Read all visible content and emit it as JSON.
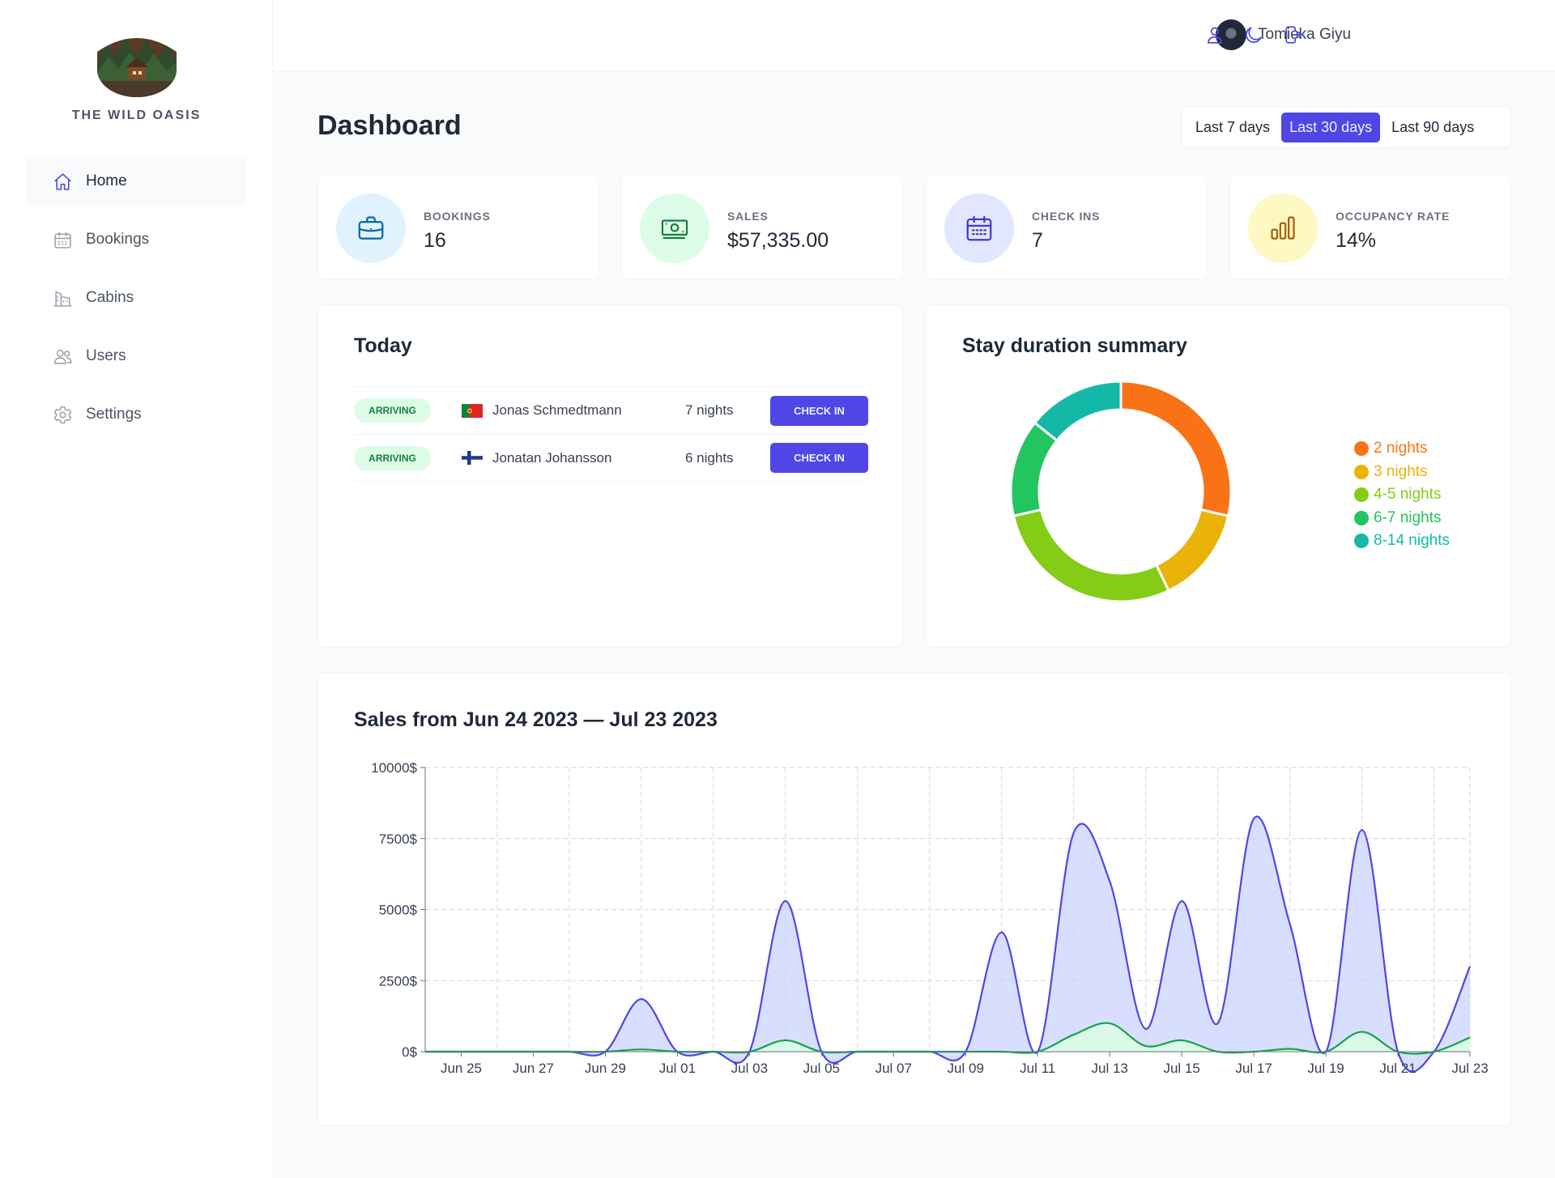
{
  "brand": {
    "name": "THE WILD OASIS"
  },
  "sidebar": {
    "items": [
      {
        "label": "Home",
        "icon": "home-icon"
      },
      {
        "label": "Bookings",
        "icon": "calendar-icon"
      },
      {
        "label": "Cabins",
        "icon": "cabins-icon"
      },
      {
        "label": "Users",
        "icon": "users-icon"
      },
      {
        "label": "Settings",
        "icon": "gear-icon"
      }
    ],
    "active": "Home"
  },
  "header": {
    "user_name": "Tomioka Giyu",
    "icons": [
      "user-icon",
      "moon-icon",
      "logout-icon"
    ]
  },
  "page": {
    "title": "Dashboard",
    "filters": [
      "Last 7 days",
      "Last 30 days",
      "Last 90 days"
    ],
    "active_filter": "Last 30 days"
  },
  "stats": [
    {
      "label": "BOOKINGS",
      "value": "16",
      "icon": "briefcase-icon",
      "bg": "#e0f2fe",
      "color": "#0369a1"
    },
    {
      "label": "SALES",
      "value": "$57,335.00",
      "icon": "banknotes-icon",
      "bg": "#dcfce7",
      "color": "#15803d"
    },
    {
      "label": "CHECK INS",
      "value": "7",
      "icon": "calendar-days-icon",
      "bg": "#e0e7ff",
      "color": "#4338ca"
    },
    {
      "label": "OCCUPANCY RATE",
      "value": "14%",
      "icon": "chart-bar-icon",
      "bg": "#fef9c3",
      "color": "#a16207"
    }
  ],
  "today": {
    "title": "Today",
    "rows": [
      {
        "status": "ARRIVING",
        "flag": "portugal-flag-icon",
        "guest": "Jonas Schmedtmann",
        "nights": "7 nights",
        "action": "CHECK IN"
      },
      {
        "status": "ARRIVING",
        "flag": "finland-flag-icon",
        "guest": "Jonatan Johansson",
        "nights": "6 nights",
        "action": "CHECK IN"
      }
    ]
  },
  "duration": {
    "title": "Stay duration summary",
    "chart_data": {
      "type": "pie",
      "variant": "donut",
      "categories": [
        "2 nights",
        "3 nights",
        "4-5 nights",
        "6-7 nights",
        "8-14 nights"
      ],
      "values": [
        4,
        2,
        4,
        2,
        2
      ],
      "colors": [
        "#f97316",
        "#eab308",
        "#84cc16",
        "#22c55e",
        "#14b8a6"
      ],
      "legend": "right"
    }
  },
  "sales": {
    "title": "Sales from Jun 24 2023 — Jul 23 2023",
    "chart_data": {
      "type": "area",
      "x": [
        "Jun 24",
        "Jun 25",
        "Jun 26",
        "Jun 27",
        "Jun 28",
        "Jun 29",
        "Jun 30",
        "Jul 01",
        "Jul 02",
        "Jul 03",
        "Jul 04",
        "Jul 05",
        "Jul 06",
        "Jul 07",
        "Jul 08",
        "Jul 09",
        "Jul 10",
        "Jul 11",
        "Jul 12",
        "Jul 13",
        "Jul 14",
        "Jul 15",
        "Jul 16",
        "Jul 17",
        "Jul 18",
        "Jul 19",
        "Jul 20",
        "Jul 21",
        "Jul 22",
        "Jul 23"
      ],
      "x_ticks": [
        "Jun 25",
        "Jun 27",
        "Jun 29",
        "Jul 01",
        "Jul 03",
        "Jul 05",
        "Jul 07",
        "Jul 09",
        "Jul 11",
        "Jul 13",
        "Jul 15",
        "Jul 17",
        "Jul 19",
        "Jul 21",
        "Jul 23"
      ],
      "series": [
        {
          "values": [
            0,
            0,
            0,
            0,
            0,
            0,
            1850,
            0,
            0,
            0,
            5300,
            0,
            0,
            0,
            0,
            0,
            4200,
            0,
            7700,
            6000,
            800,
            5300,
            1000,
            8200,
            4500,
            0,
            7800,
            0,
            0,
            3000
          ],
          "stroke": "#4f46e5",
          "fill": "#c7d2fe"
        },
        {
          "values": [
            0,
            0,
            0,
            0,
            0,
            0,
            80,
            0,
            0,
            0,
            400,
            0,
            0,
            0,
            0,
            0,
            0,
            0,
            600,
            1000,
            200,
            400,
            0,
            0,
            100,
            0,
            700,
            0,
            0,
            500
          ],
          "stroke": "#16a34a",
          "fill": "#dcfce7"
        }
      ],
      "y_ticks": [
        "0$",
        "2500$",
        "5000$",
        "7500$",
        "10000$"
      ],
      "ylim": [
        0,
        10000
      ],
      "grid": true
    }
  }
}
